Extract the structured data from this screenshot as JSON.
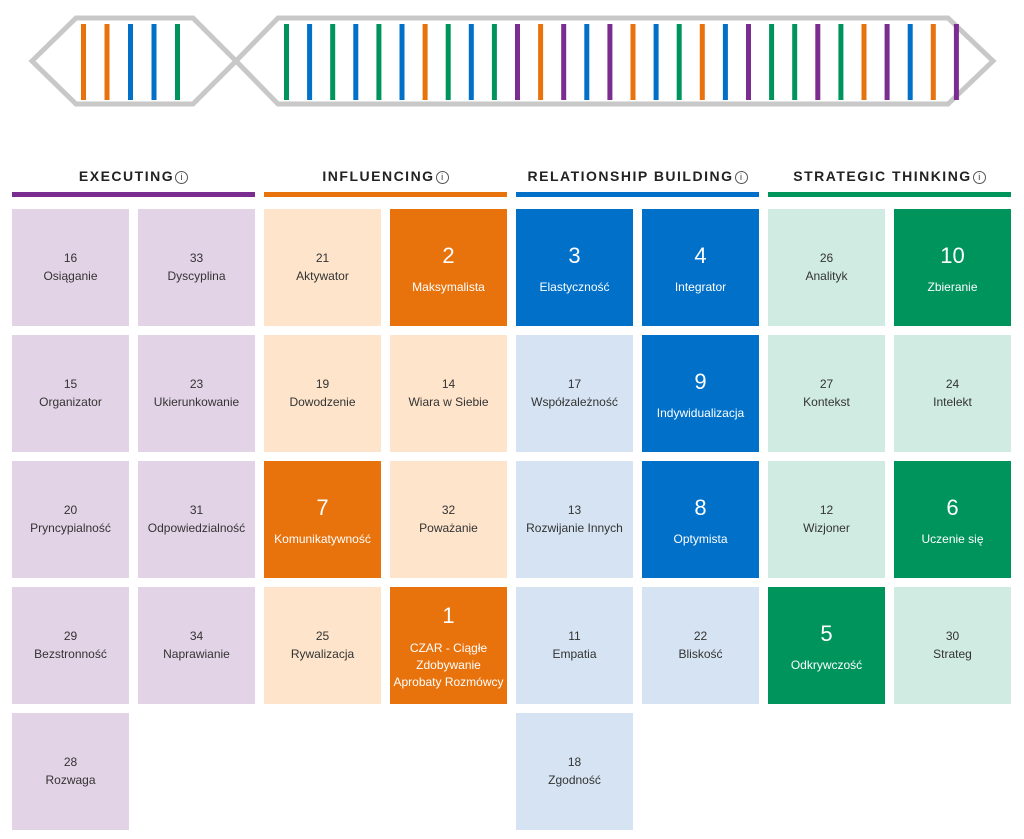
{
  "colors": {
    "executing": "#7b2d8f",
    "executing_light": "#e3d3e6",
    "influencing": "#e8720c",
    "influencing_light": "#fde4cb",
    "relationship": "#0070c9",
    "relationship_light": "#d5e3f2",
    "strategic": "#00945d",
    "strategic_light": "#d0ebe1",
    "outline": "#c8c8c8"
  },
  "banner": {
    "left_bars": [
      "influencing",
      "influencing",
      "relationship",
      "relationship",
      "strategic"
    ],
    "right_bars": [
      "strategic",
      "relationship",
      "strategic",
      "relationship",
      "strategic",
      "relationship",
      "influencing",
      "strategic",
      "relationship",
      "strategic",
      "executing",
      "influencing",
      "executing",
      "relationship",
      "executing",
      "influencing",
      "relationship",
      "strategic",
      "influencing",
      "relationship",
      "executing",
      "strategic",
      "strategic",
      "executing",
      "strategic",
      "influencing",
      "executing",
      "relationship",
      "influencing",
      "executing"
    ]
  },
  "domains": [
    {
      "key": "executing",
      "title": "EXECUTING",
      "info": "i",
      "tiles": [
        {
          "col": 0,
          "row": 0,
          "rank": "16",
          "name": "Osiąganie",
          "top": false
        },
        {
          "col": 1,
          "row": 0,
          "rank": "33",
          "name": "Dyscyplina",
          "top": false
        },
        {
          "col": 0,
          "row": 1,
          "rank": "15",
          "name": "Organizator",
          "top": false
        },
        {
          "col": 1,
          "row": 1,
          "rank": "23",
          "name": "Ukierunkowanie",
          "top": false
        },
        {
          "col": 0,
          "row": 2,
          "rank": "20",
          "name": "Pryncypialność",
          "top": false
        },
        {
          "col": 1,
          "row": 2,
          "rank": "31",
          "name": "Odpowiedzialność",
          "top": false
        },
        {
          "col": 0,
          "row": 3,
          "rank": "29",
          "name": "Bezstronność",
          "top": false
        },
        {
          "col": 1,
          "row": 3,
          "rank": "34",
          "name": "Naprawianie",
          "top": false
        },
        {
          "col": 0,
          "row": 4,
          "rank": "28",
          "name": "Rozwaga",
          "top": false
        }
      ]
    },
    {
      "key": "influencing",
      "title": "INFLUENCING",
      "info": "i",
      "tiles": [
        {
          "col": 0,
          "row": 0,
          "rank": "21",
          "name": "Aktywator",
          "top": false
        },
        {
          "col": 1,
          "row": 0,
          "rank": "2",
          "name": "Maksymalista",
          "top": true
        },
        {
          "col": 0,
          "row": 1,
          "rank": "19",
          "name": "Dowodzenie",
          "top": false
        },
        {
          "col": 1,
          "row": 1,
          "rank": "14",
          "name": "Wiara w Siebie",
          "top": false
        },
        {
          "col": 0,
          "row": 2,
          "rank": "7",
          "name": "Komunikatywność",
          "top": true
        },
        {
          "col": 1,
          "row": 2,
          "rank": "32",
          "name": "Poważanie",
          "top": false
        },
        {
          "col": 0,
          "row": 3,
          "rank": "25",
          "name": "Rywalizacja",
          "top": false
        },
        {
          "col": 1,
          "row": 3,
          "rank": "1",
          "name": "CZAR - Ciągłe Zdobywanie Aprobaty Rozmówcy",
          "top": true,
          "long": true
        }
      ]
    },
    {
      "key": "relationship",
      "title": "RELATIONSHIP BUILDING",
      "info": "i",
      "tiles": [
        {
          "col": 0,
          "row": 0,
          "rank": "3",
          "name": "Elastyczność",
          "top": true
        },
        {
          "col": 1,
          "row": 0,
          "rank": "4",
          "name": "Integrator",
          "top": true
        },
        {
          "col": 0,
          "row": 1,
          "rank": "17",
          "name": "Współzależność",
          "top": false
        },
        {
          "col": 1,
          "row": 1,
          "rank": "9",
          "name": "Indywidualizacja",
          "top": true
        },
        {
          "col": 0,
          "row": 2,
          "rank": "13",
          "name": "Rozwijanie Innych",
          "top": false
        },
        {
          "col": 1,
          "row": 2,
          "rank": "8",
          "name": "Optymista",
          "top": true
        },
        {
          "col": 0,
          "row": 3,
          "rank": "11",
          "name": "Empatia",
          "top": false
        },
        {
          "col": 1,
          "row": 3,
          "rank": "22",
          "name": "Bliskość",
          "top": false
        },
        {
          "col": 0,
          "row": 4,
          "rank": "18",
          "name": "Zgodność",
          "top": false
        }
      ]
    },
    {
      "key": "strategic",
      "title": "STRATEGIC THINKING",
      "info": "i",
      "tiles": [
        {
          "col": 0,
          "row": 0,
          "rank": "26",
          "name": "Analityk",
          "top": false
        },
        {
          "col": 1,
          "row": 0,
          "rank": "10",
          "name": "Zbieranie",
          "top": true
        },
        {
          "col": 0,
          "row": 1,
          "rank": "27",
          "name": "Kontekst",
          "top": false
        },
        {
          "col": 1,
          "row": 1,
          "rank": "24",
          "name": "Intelekt",
          "top": false
        },
        {
          "col": 0,
          "row": 2,
          "rank": "12",
          "name": "Wizjoner",
          "top": false
        },
        {
          "col": 1,
          "row": 2,
          "rank": "6",
          "name": "Uczenie się",
          "top": true
        },
        {
          "col": 0,
          "row": 3,
          "rank": "5",
          "name": "Odkrywczość",
          "top": true
        },
        {
          "col": 1,
          "row": 3,
          "rank": "30",
          "name": "Strateg",
          "top": false
        }
      ]
    }
  ]
}
